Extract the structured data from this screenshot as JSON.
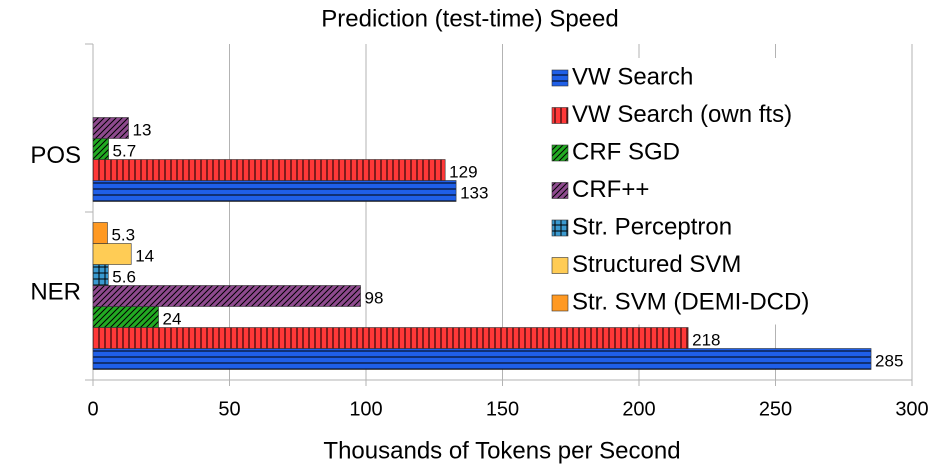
{
  "chart_data": {
    "type": "bar",
    "orientation": "horizontal",
    "title": "Prediction (test-time) Speed",
    "x_label": "Thousands of Tokens per Second",
    "categories": [
      "POS",
      "NER"
    ],
    "series": [
      {
        "name": "VW Search",
        "color": "#1f5fe8",
        "pattern": "horizontal",
        "values": [
          133,
          285
        ]
      },
      {
        "name": "VW Search (own fts)",
        "color": "#ff3838",
        "pattern": "vertical",
        "values": [
          129,
          218
        ]
      },
      {
        "name": "CRF SGD",
        "color": "#22aa22",
        "pattern": "diagonal",
        "values": [
          5.7,
          24
        ]
      },
      {
        "name": "CRF++",
        "color": "#8e4a8e",
        "pattern": "diagonal",
        "values": [
          13,
          98
        ]
      },
      {
        "name": "Str. Perceptron",
        "color": "#3a9ad0",
        "pattern": "grid",
        "values": [
          null,
          5.6
        ]
      },
      {
        "name": "Structured SVM",
        "color": "#ffcc55",
        "pattern": "crosshatch",
        "values": [
          null,
          14
        ]
      },
      {
        "name": "Str. SVM (DEMI-DCD)",
        "color": "#ff9922",
        "pattern": "solid",
        "values": [
          null,
          5.3
        ]
      }
    ],
    "xlim": [
      0,
      300
    ],
    "xticks": [
      0,
      50,
      100,
      150,
      200,
      250,
      300
    ],
    "grid": true,
    "legend": "upper right"
  }
}
